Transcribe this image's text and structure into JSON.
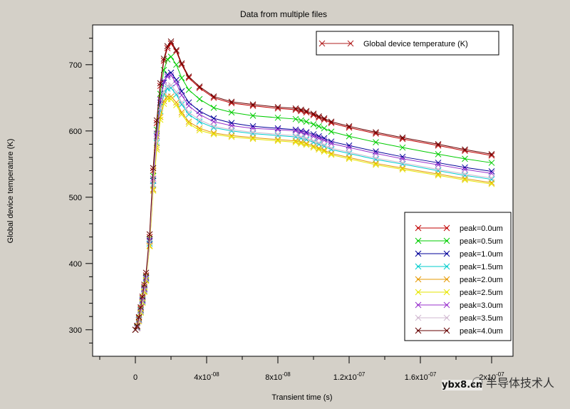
{
  "chart_data": {
    "type": "line",
    "title": "Data from multiple files",
    "xlabel": "Transient time (s)",
    "ylabel": "Global device temperature (K)",
    "xlim": [
      -2.4e-08,
      2.12e-07
    ],
    "ylim": [
      260,
      760
    ],
    "x_ticks": [
      {
        "value": 0,
        "label": "0"
      },
      {
        "value": 4e-08,
        "label": "4x10",
        "exp": "-08"
      },
      {
        "value": 8e-08,
        "label": "8x10",
        "exp": "-08"
      },
      {
        "value": 1.2e-07,
        "label": "1.2x10",
        "exp": "-07"
      },
      {
        "value": 1.6e-07,
        "label": "1.6x10",
        "exp": "-07"
      },
      {
        "value": 2e-07,
        "label": "2x10",
        "exp": "-07"
      }
    ],
    "y_ticks": [
      300,
      400,
      500,
      600,
      700
    ],
    "top_legend": {
      "label": "Global device temperature (K)",
      "color": "#b22222"
    },
    "x": [
      0,
      1e-09,
      2e-09,
      3e-09,
      4e-09,
      5e-09,
      6e-09,
      8e-09,
      1e-08,
      1.2e-08,
      1.4e-08,
      1.6e-08,
      1.8e-08,
      2e-08,
      2.3e-08,
      2.6e-08,
      3e-08,
      3.6e-08,
      4.4e-08,
      5.4e-08,
      6.6e-08,
      8e-08,
      9e-08,
      9.3e-08,
      9.6e-08,
      1e-07,
      1.03e-07,
      1.06e-07,
      1.1e-07,
      1.2e-07,
      1.35e-07,
      1.5e-07,
      1.7e-07,
      1.85e-07,
      2e-07
    ],
    "series": [
      {
        "name": "peak=0.0um",
        "color": "#c00000",
        "values": [
          300,
          305,
          318,
          332,
          348,
          365,
          382,
          440,
          540,
          612,
          668,
          706,
          725,
          732,
          720,
          700,
          680,
          665,
          650,
          642,
          638,
          634,
          632,
          630,
          628,
          624,
          620,
          617,
          612,
          605,
          596,
          588,
          578,
          570,
          563
        ]
      },
      {
        "name": "peak=0.5um",
        "color": "#00cc00",
        "values": [
          300,
          304,
          316,
          330,
          346,
          363,
          380,
          437,
          532,
          602,
          656,
          692,
          708,
          712,
          700,
          680,
          662,
          648,
          635,
          628,
          623,
          620,
          618,
          616,
          614,
          610,
          607,
          604,
          599,
          592,
          583,
          575,
          565,
          558,
          552
        ]
      },
      {
        "name": "peak=1.0um",
        "color": "#000099",
        "values": [
          300,
          303,
          315,
          329,
          344,
          361,
          378,
          434,
          525,
          592,
          643,
          673,
          685,
          688,
          677,
          660,
          643,
          630,
          619,
          612,
          607,
          604,
          602,
          600,
          598,
          595,
          592,
          589,
          584,
          578,
          569,
          561,
          552,
          545,
          539
        ]
      },
      {
        "name": "peak=1.5um",
        "color": "#00cccc",
        "values": [
          300,
          302,
          314,
          327,
          342,
          359,
          376,
          430,
          518,
          582,
          630,
          655,
          664,
          665,
          655,
          640,
          625,
          614,
          605,
          600,
          596,
          593,
          591,
          589,
          587,
          583,
          580,
          577,
          572,
          566,
          557,
          550,
          540,
          533,
          527
        ]
      },
      {
        "name": "peak=2.0um",
        "color": "#e69900",
        "values": [
          300,
          302,
          313,
          326,
          341,
          358,
          375,
          427,
          512,
          575,
          621,
          645,
          652,
          652,
          643,
          628,
          614,
          604,
          597,
          593,
          590,
          587,
          585,
          583,
          581,
          577,
          574,
          571,
          566,
          560,
          551,
          544,
          535,
          528,
          522
        ]
      },
      {
        "name": "peak=2.5um",
        "color": "#e6e600",
        "values": [
          300,
          302,
          313,
          326,
          341,
          357,
          374,
          426,
          510,
          572,
          617,
          641,
          648,
          648,
          639,
          625,
          611,
          601,
          595,
          591,
          588,
          585,
          583,
          581,
          579,
          575,
          572,
          569,
          564,
          558,
          549,
          542,
          533,
          526,
          520
        ]
      },
      {
        "name": "peak=3.0um",
        "color": "#9933cc",
        "values": [
          300,
          303,
          315,
          329,
          345,
          362,
          379,
          436,
          528,
          596,
          647,
          676,
          682,
          684,
          672,
          654,
          638,
          625,
          614,
          608,
          604,
          602,
          600,
          598,
          596,
          592,
          589,
          586,
          581,
          575,
          566,
          558,
          549,
          542,
          536
        ]
      },
      {
        "name": "peak=3.5um",
        "color": "#d0b8d0",
        "values": [
          300,
          302,
          314,
          328,
          343,
          360,
          377,
          432,
          520,
          585,
          634,
          660,
          668,
          669,
          659,
          643,
          628,
          617,
          607,
          602,
          598,
          595,
          593,
          591,
          589,
          585,
          582,
          579,
          574,
          568,
          559,
          552,
          542,
          535,
          529
        ]
      },
      {
        "name": "peak=4.0um",
        "color": "#660000",
        "values": [
          300,
          306,
          319,
          334,
          350,
          368,
          386,
          444,
          544,
          616,
          672,
          709,
          728,
          735,
          722,
          702,
          682,
          667,
          652,
          644,
          640,
          636,
          634,
          632,
          630,
          626,
          622,
          619,
          614,
          607,
          598,
          590,
          580,
          572,
          565
        ]
      }
    ]
  },
  "watermark": {
    "text": "半导体技术人",
    "sub": "ybx8.cn"
  }
}
